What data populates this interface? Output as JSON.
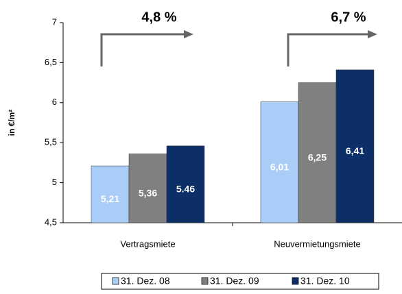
{
  "chart_data": {
    "type": "bar",
    "ylabel": "in €/m²",
    "categories": [
      "Vertragsmiete",
      "Neuvermietungsmiete"
    ],
    "series": [
      {
        "name": "31. Dez. 08",
        "color": "#a9cdf7",
        "values": [
          5.21,
          6.01
        ],
        "value_labels": [
          "5,21",
          "6,01"
        ]
      },
      {
        "name": "31. Dez. 09",
        "color": "#808080",
        "values": [
          5.36,
          6.25
        ],
        "value_labels": [
          "5,36",
          "6,25"
        ]
      },
      {
        "name": "31. Dez. 10",
        "color": "#0b2f66",
        "values": [
          5.46,
          6.41
        ],
        "value_labels": [
          "5.46",
          "6,41"
        ]
      }
    ],
    "annotations": [
      "4,8 %",
      "6,7 %"
    ],
    "ylim": [
      4.5,
      7
    ],
    "yticks": [
      {
        "value": 4.5,
        "label": "4,5"
      },
      5,
      {
        "value": 5.5,
        "label": "5,5"
      },
      6,
      {
        "value": 6.5,
        "label": "6,5"
      },
      7
    ],
    "legend": "bottom"
  }
}
